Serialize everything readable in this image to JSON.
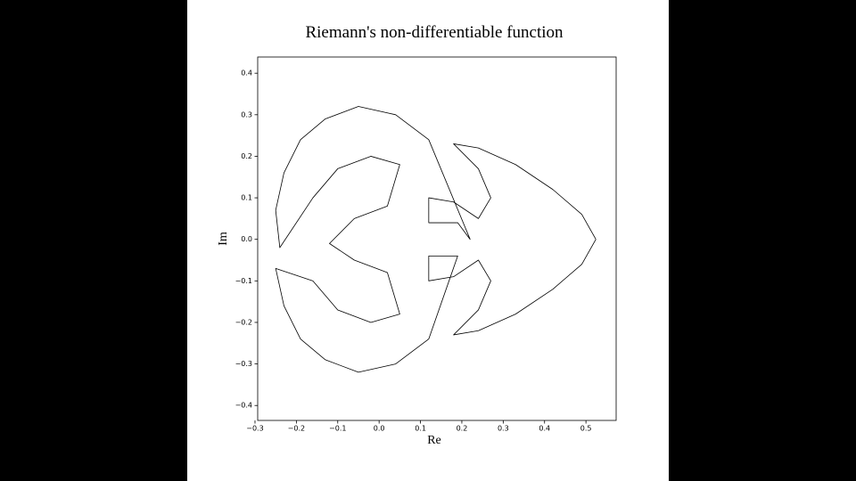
{
  "chart_data": {
    "type": "line",
    "title": "Riemann's non-differentiable function",
    "x_label": "Re",
    "y_label": "Im",
    "series": [
      {
        "color": "#000000",
        "x": [
          0.524,
          0.49,
          0.42,
          0.33,
          0.24,
          0.18,
          0.24,
          0.27,
          0.24,
          0.18,
          0.12,
          0.12,
          0.19,
          0.22,
          0.12,
          0.04,
          -0.05,
          -0.13,
          -0.19,
          -0.23,
          -0.25,
          -0.24,
          -0.16,
          -0.1,
          -0.02,
          0.05,
          0.02,
          -0.06,
          -0.12,
          -0.06,
          0.02,
          0.05,
          -0.02,
          -0.1,
          -0.16,
          -0.25,
          -0.23,
          -0.19,
          -0.13,
          -0.05,
          0.04,
          0.12,
          0.19,
          0.12,
          0.12,
          0.18,
          0.24,
          0.27,
          0.24,
          0.18,
          0.24,
          0.33,
          0.42,
          0.49,
          0.524
        ],
        "values": [
          0,
          0.06,
          0.12,
          0.18,
          0.22,
          0.23,
          0.17,
          0.1,
          0.05,
          0.09,
          0.1,
          0.04,
          0.04,
          0,
          0.24,
          0.3,
          0.32,
          0.29,
          0.24,
          0.16,
          0.07,
          -0.02,
          0.1,
          0.17,
          0.2,
          0.18,
          0.08,
          0.05,
          -0.01,
          -0.05,
          -0.08,
          -0.18,
          -0.2,
          -0.17,
          -0.1,
          -0.07,
          -0.16,
          -0.24,
          -0.29,
          -0.32,
          -0.3,
          -0.24,
          -0.04,
          -0.04,
          -0.1,
          -0.09,
          -0.05,
          -0.1,
          -0.17,
          -0.23,
          -0.22,
          -0.18,
          -0.12,
          -0.06,
          0
        ]
      }
    ],
    "xlim": [
      -0.2935,
      0.573
    ],
    "ylim": [
      -0.436,
      0.439
    ],
    "xticks": [
      {
        "value": -0.3,
        "label": "−0.3"
      },
      {
        "value": -0.2,
        "label": "−0.2"
      },
      {
        "value": -0.1,
        "label": "−0.1"
      },
      {
        "value": 0,
        "label": "0.0"
      },
      0.1,
      0.2,
      0.3,
      0.4,
      0.5
    ],
    "yticks": [
      {
        "value": -0.4,
        "label": "−0.4"
      },
      {
        "value": -0.3,
        "label": "−0.3"
      },
      {
        "value": -0.2,
        "label": "−0.2"
      },
      {
        "value": -0.1,
        "label": "−0.1"
      },
      {
        "value": 0,
        "label": "0.0"
      },
      0.1,
      0.2,
      0.3,
      0.4
    ]
  }
}
